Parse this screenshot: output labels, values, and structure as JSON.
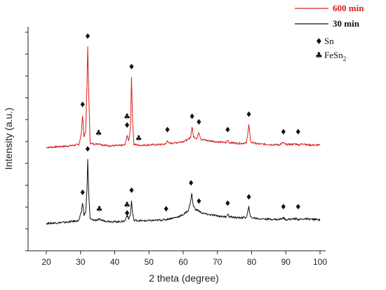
{
  "chart_data": {
    "type": "line",
    "title": "",
    "xlabel": "2 theta (degree)",
    "ylabel": "Intensity (a.u.)",
    "xlim": [
      20,
      100
    ],
    "ylim": [
      0,
      100
    ],
    "x_ticks": [
      20,
      30,
      40,
      50,
      60,
      70,
      80,
      90,
      100
    ],
    "y_tick_labels_shown": false,
    "grid": false,
    "legend": {
      "position": "top-right",
      "entries": [
        {
          "name": "600 min",
          "color": "#d62020"
        },
        {
          "name": "30 min",
          "color": "#111111"
        }
      ]
    },
    "phase_legend": [
      {
        "symbol": "♦",
        "label": "Sn"
      },
      {
        "symbol": "♣",
        "label": "FeSn",
        "subscript": "2"
      }
    ],
    "series": [
      {
        "name": "600 min",
        "color": "#d62020",
        "baseline": 45.0,
        "points": [
          [
            20.0,
            45.0
          ],
          [
            22.0,
            45.2
          ],
          [
            24.0,
            45.4
          ],
          [
            26.0,
            45.6
          ],
          [
            28.0,
            46.0
          ],
          [
            29.5,
            46.3
          ],
          [
            30.2,
            51.0
          ],
          [
            30.6,
            60.0
          ],
          [
            31.0,
            50.0
          ],
          [
            31.5,
            52.0
          ],
          [
            31.9,
            74.0
          ],
          [
            32.1,
            91.5
          ],
          [
            32.4,
            70.0
          ],
          [
            32.8,
            47.0
          ],
          [
            34.0,
            46.5
          ],
          [
            35.3,
            46.8
          ],
          [
            36.5,
            46.2
          ],
          [
            38.0,
            45.8
          ],
          [
            40.0,
            45.8
          ],
          [
            42.0,
            45.9
          ],
          [
            43.0,
            46.2
          ],
          [
            43.6,
            50.5
          ],
          [
            44.1,
            48.0
          ],
          [
            44.6,
            54.0
          ],
          [
            44.9,
            77.5
          ],
          [
            45.2,
            58.0
          ],
          [
            45.6,
            46.5
          ],
          [
            47.0,
            46.0
          ],
          [
            50.0,
            46.2
          ],
          [
            53.0,
            46.3
          ],
          [
            55.0,
            46.6
          ],
          [
            55.4,
            48.5
          ],
          [
            55.8,
            46.8
          ],
          [
            58.0,
            47.2
          ],
          [
            60.0,
            47.8
          ],
          [
            61.5,
            48.6
          ],
          [
            62.2,
            50.0
          ],
          [
            62.6,
            54.5
          ],
          [
            63.0,
            50.0
          ],
          [
            64.0,
            49.2
          ],
          [
            64.6,
            52.0
          ],
          [
            65.2,
            48.8
          ],
          [
            67.0,
            48.2
          ],
          [
            70.0,
            47.6
          ],
          [
            72.5,
            47.2
          ],
          [
            73.0,
            48.4
          ],
          [
            73.5,
            47.3
          ],
          [
            76.0,
            46.9
          ],
          [
            78.5,
            47.0
          ],
          [
            79.2,
            55.5
          ],
          [
            79.7,
            47.5
          ],
          [
            82.0,
            46.6
          ],
          [
            85.0,
            46.4
          ],
          [
            88.0,
            46.2
          ],
          [
            89.3,
            47.2
          ],
          [
            90.0,
            46.3
          ],
          [
            93.2,
            46.6
          ],
          [
            93.6,
            46.2
          ],
          [
            95.5,
            46.8
          ],
          [
            96.0,
            46.2
          ],
          [
            98.0,
            46.1
          ],
          [
            100.0,
            46.0
          ]
        ]
      },
      {
        "name": "30 min",
        "color": "#111111",
        "baseline": 10.0,
        "points": [
          [
            20.0,
            10.0
          ],
          [
            22.0,
            10.2
          ],
          [
            24.0,
            10.4
          ],
          [
            26.0,
            10.6
          ],
          [
            28.0,
            11.0
          ],
          [
            29.5,
            11.3
          ],
          [
            30.2,
            15.0
          ],
          [
            30.6,
            19.5
          ],
          [
            31.0,
            14.0
          ],
          [
            31.5,
            15.0
          ],
          [
            31.9,
            26.0
          ],
          [
            32.1,
            39.5
          ],
          [
            32.4,
            24.0
          ],
          [
            32.8,
            12.0
          ],
          [
            34.0,
            11.5
          ],
          [
            35.5,
            11.8
          ],
          [
            37.0,
            11.2
          ],
          [
            40.0,
            10.8
          ],
          [
            42.0,
            10.9
          ],
          [
            43.0,
            11.2
          ],
          [
            43.6,
            14.0
          ],
          [
            44.1,
            12.0
          ],
          [
            44.6,
            14.5
          ],
          [
            44.9,
            20.5
          ],
          [
            45.2,
            15.0
          ],
          [
            45.6,
            11.5
          ],
          [
            48.0,
            11.2
          ],
          [
            52.0,
            11.4
          ],
          [
            55.0,
            11.8
          ],
          [
            56.0,
            12.2
          ],
          [
            58.0,
            12.8
          ],
          [
            60.0,
            14.0
          ],
          [
            61.5,
            16.0
          ],
          [
            62.1,
            19.5
          ],
          [
            62.5,
            24.0
          ],
          [
            62.9,
            18.5
          ],
          [
            63.6,
            16.5
          ],
          [
            64.6,
            15.8
          ],
          [
            65.2,
            15.0
          ],
          [
            67.0,
            14.2
          ],
          [
            70.0,
            13.5
          ],
          [
            72.5,
            13.0
          ],
          [
            73.0,
            14.5
          ],
          [
            73.5,
            13.1
          ],
          [
            76.0,
            12.6
          ],
          [
            78.5,
            12.8
          ],
          [
            79.2,
            17.5
          ],
          [
            79.7,
            12.8
          ],
          [
            82.0,
            12.2
          ],
          [
            85.0,
            12.0
          ],
          [
            88.0,
            11.8
          ],
          [
            89.3,
            12.6
          ],
          [
            90.0,
            11.8
          ],
          [
            93.2,
            12.2
          ],
          [
            93.6,
            11.8
          ],
          [
            95.5,
            12.1
          ],
          [
            98.0,
            11.9
          ],
          [
            100.0,
            11.7
          ]
        ]
      }
    ],
    "annotations": [
      {
        "symbol": "♦",
        "phase": "Sn",
        "x": 30.6,
        "y": 63.5
      },
      {
        "symbol": "♦",
        "phase": "Sn",
        "x": 32.1,
        "y": 95.0
      },
      {
        "symbol": "♣",
        "phase": "FeSn2",
        "x": 35.3,
        "y": 50.5
      },
      {
        "symbol": "♣",
        "phase": "FeSn2",
        "x": 43.6,
        "y": 58.0
      },
      {
        "symbol": "♦",
        "phase": "Sn",
        "x": 43.6,
        "y": 54.0
      },
      {
        "symbol": "♦",
        "phase": "Sn",
        "x": 44.9,
        "y": 81.0
      },
      {
        "symbol": "♣",
        "phase": "FeSn2",
        "x": 47.0,
        "y": 48.0
      },
      {
        "symbol": "♦",
        "phase": "Sn",
        "x": 55.4,
        "y": 52.0
      },
      {
        "symbol": "♦",
        "phase": "Sn",
        "x": 62.6,
        "y": 58.0
      },
      {
        "symbol": "♦",
        "phase": "Sn",
        "x": 64.6,
        "y": 55.5
      },
      {
        "symbol": "♦",
        "phase": "Sn",
        "x": 73.0,
        "y": 52.0
      },
      {
        "symbol": "♦",
        "phase": "Sn",
        "x": 79.2,
        "y": 59.0
      },
      {
        "symbol": "♦",
        "phase": "Sn",
        "x": 89.3,
        "y": 51.0
      },
      {
        "symbol": "♦",
        "phase": "Sn",
        "x": 93.6,
        "y": 51.0
      },
      {
        "symbol": "♦",
        "phase": "Sn",
        "x": 30.6,
        "y": 23.0
      },
      {
        "symbol": "♦",
        "phase": "Sn",
        "x": 32.1,
        "y": 43.0
      },
      {
        "symbol": "♣",
        "phase": "FeSn2",
        "x": 35.5,
        "y": 15.5
      },
      {
        "symbol": "♣",
        "phase": "FeSn2",
        "x": 43.6,
        "y": 17.5
      },
      {
        "symbol": "♦",
        "phase": "Sn",
        "x": 43.6,
        "y": 13.5
      },
      {
        "symbol": "♦",
        "phase": "Sn",
        "x": 44.9,
        "y": 24.0
      },
      {
        "symbol": "♦",
        "phase": "Sn",
        "x": 55.0,
        "y": 15.5
      },
      {
        "symbol": "♦",
        "phase": "Sn",
        "x": 62.3,
        "y": 27.5
      },
      {
        "symbol": "♦",
        "phase": "Sn",
        "x": 64.6,
        "y": 19.0
      },
      {
        "symbol": "♦",
        "phase": "Sn",
        "x": 73.0,
        "y": 18.0
      },
      {
        "symbol": "♦",
        "phase": "Sn",
        "x": 79.2,
        "y": 21.0
      },
      {
        "symbol": "♦",
        "phase": "Sn",
        "x": 89.3,
        "y": 16.5
      },
      {
        "symbol": "♦",
        "phase": "Sn",
        "x": 93.6,
        "y": 16.5
      }
    ]
  }
}
